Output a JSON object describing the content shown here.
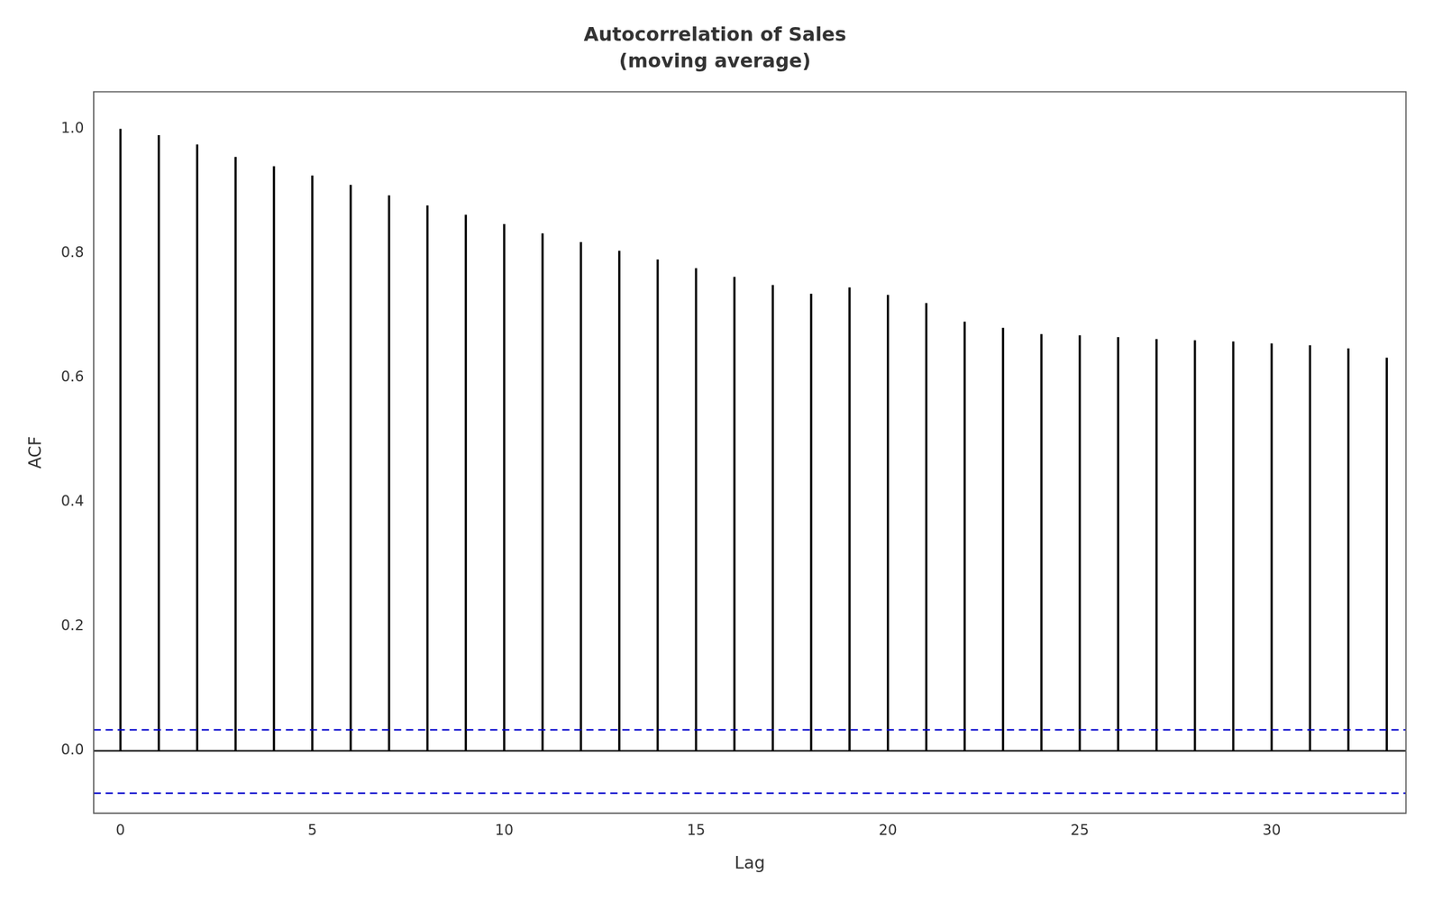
{
  "chart_data": {
    "type": "bar",
    "title": "Autocorrelation of Sales",
    "subtitle": "(moving average)",
    "xlabel": "Lag",
    "ylabel": "ACF",
    "x": [
      0,
      1,
      2,
      3,
      4,
      5,
      6,
      7,
      8,
      9,
      10,
      11,
      12,
      13,
      14,
      15,
      16,
      17,
      18,
      19,
      20,
      21,
      22,
      23,
      24,
      25,
      26,
      27,
      28,
      29,
      30,
      31,
      32,
      33
    ],
    "values": [
      1.0,
      0.99,
      0.975,
      0.955,
      0.94,
      0.925,
      0.91,
      0.893,
      0.877,
      0.862,
      0.847,
      0.832,
      0.818,
      0.804,
      0.79,
      0.776,
      0.762,
      0.749,
      0.735,
      0.745,
      0.733,
      0.72,
      0.69,
      0.68,
      0.67,
      0.668,
      0.665,
      0.662,
      0.66,
      0.658,
      0.655,
      0.652,
      0.647,
      0.632
    ],
    "color": "#000000",
    "hlines": [
      {
        "y": 0,
        "color": "#000000",
        "line_style": "solid"
      },
      {
        "y": 0.034,
        "color": "#0000cc",
        "line_style": "dashed"
      },
      {
        "y": -0.068,
        "color": "#0000cc",
        "line_style": "dashed"
      }
    ],
    "xlim": [
      -0.7,
      33.5
    ],
    "ylim": [
      -0.1,
      1.06
    ],
    "xticks": [
      0,
      5,
      10,
      15,
      20,
      25,
      30
    ],
    "yticks": [
      {
        "value": 0.0,
        "label": "0.0"
      },
      0.2,
      0.4,
      0.6,
      0.8,
      {
        "value": 1.0,
        "label": "1.0"
      }
    ],
    "grid": false
  }
}
